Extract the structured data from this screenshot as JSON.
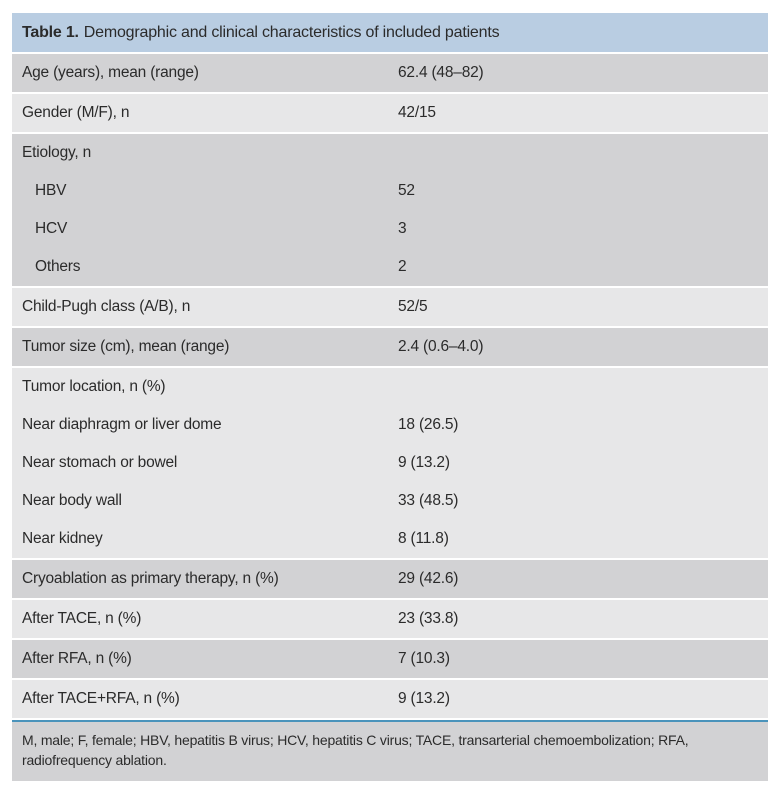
{
  "table": {
    "title_label": "Table 1.",
    "title_text": "Demographic and clinical characteristics of included patients",
    "colors": {
      "header_bg": "#b9cde2",
      "row_dark": "#d2d2d4",
      "row_light": "#e7e7e8",
      "footnote_bg": "#d2d2d4",
      "divider_blue": "#4a93bb",
      "text": "#2b2b2b"
    },
    "groups": [
      {
        "shade": "dark",
        "rows": [
          {
            "label": "Age (years), mean (range)",
            "value": "62.4 (48–82)"
          }
        ]
      },
      {
        "shade": "light",
        "rows": [
          {
            "label": "Gender (M/F), n",
            "value": "42/15"
          }
        ]
      },
      {
        "shade": "dark",
        "rows": [
          {
            "label": "Etiology, n",
            "value": ""
          },
          {
            "label": "HBV",
            "value": "52",
            "indent": true
          },
          {
            "label": "HCV",
            "value": "3",
            "indent": true
          },
          {
            "label": "Others",
            "value": "2",
            "indent": true
          }
        ]
      },
      {
        "shade": "light",
        "rows": [
          {
            "label": "Child-Pugh class (A/B), n",
            "value": "52/5"
          }
        ]
      },
      {
        "shade": "dark",
        "rows": [
          {
            "label": "Tumor size (cm), mean (range)",
            "value": "2.4 (0.6–4.0)"
          }
        ]
      },
      {
        "shade": "light",
        "rows": [
          {
            "label": "Tumor location, n (%)",
            "value": ""
          },
          {
            "label": "Near diaphragm or liver dome",
            "value": "18 (26.5)"
          },
          {
            "label": "Near stomach or bowel",
            "value": "9 (13.2)"
          },
          {
            "label": "Near body wall",
            "value": "33 (48.5)"
          },
          {
            "label": "Near kidney",
            "value": "8 (11.8)"
          }
        ]
      },
      {
        "shade": "dark",
        "rows": [
          {
            "label": "Cryoablation as primary therapy, n (%)",
            "value": "29 (42.6)"
          }
        ]
      },
      {
        "shade": "light",
        "rows": [
          {
            "label": "After TACE, n (%)",
            "value": "23 (33.8)"
          }
        ]
      },
      {
        "shade": "dark",
        "rows": [
          {
            "label": "After RFA, n (%)",
            "value": "7 (10.3)"
          }
        ]
      },
      {
        "shade": "light",
        "rows": [
          {
            "label": "After TACE+RFA, n (%)",
            "value": "9 (13.2)"
          }
        ]
      }
    ],
    "footnote": "M, male; F, female; HBV, hepatitis B virus; HCV, hepatitis C virus; TACE, transarterial chemoembolization; RFA, radiofrequency ablation."
  }
}
